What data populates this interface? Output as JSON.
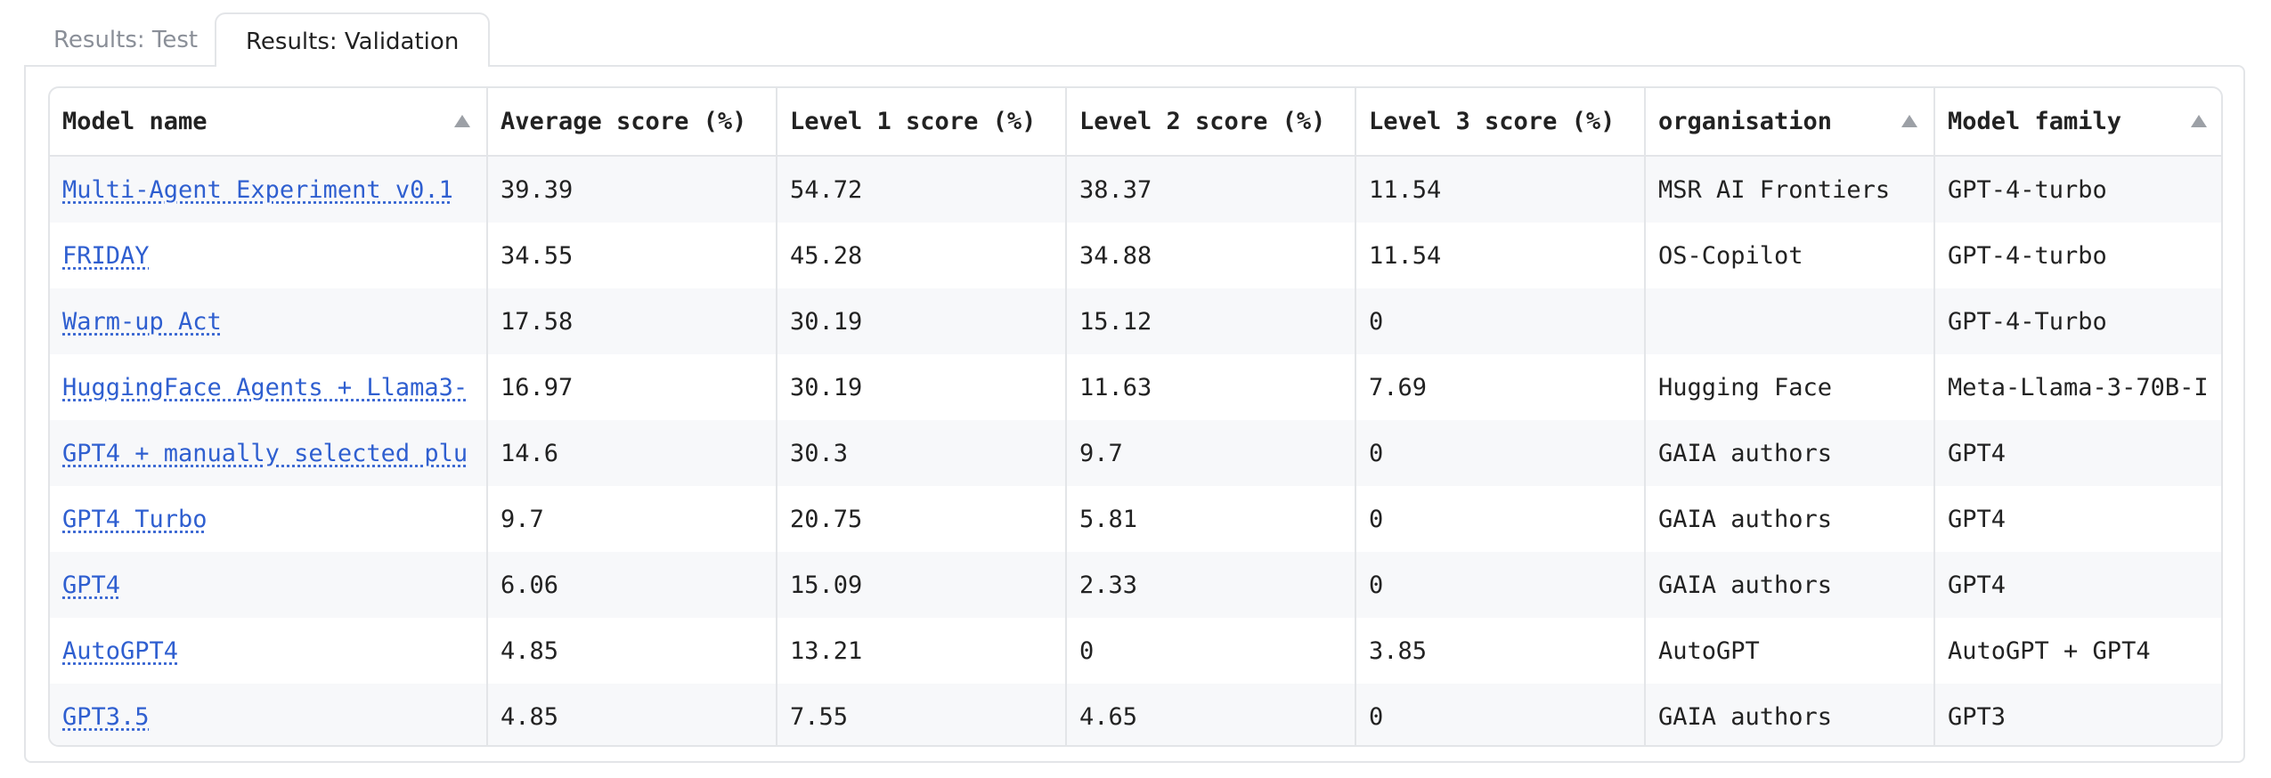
{
  "tabs": [
    "Results: Test",
    "Results: Validation"
  ],
  "table": {
    "headers": [
      "Model name",
      "Average score (%)",
      "Level 1 score (%)",
      "Level 2 score (%)",
      "Level 3 score (%)",
      "organisation",
      "Model family"
    ],
    "rows": [
      [
        "Multi-Agent Experiment v0.1",
        "39.39",
        "54.72",
        "38.37",
        "11.54",
        "MSR AI Frontiers",
        "GPT-4-turbo"
      ],
      [
        "FRIDAY",
        "34.55",
        "45.28",
        "34.88",
        "11.54",
        "OS-Copilot",
        "GPT-4-turbo"
      ],
      [
        "Warm-up Act",
        "17.58",
        "30.19",
        "15.12",
        "0",
        null,
        "GPT-4-Turbo"
      ],
      [
        "HuggingFace Agents + Llama3-",
        "16.97",
        "30.19",
        "11.63",
        "7.69",
        "Hugging Face",
        "Meta-Llama-3-70B-I"
      ],
      [
        "GPT4 + manually selected plu",
        "14.6",
        "30.3",
        "9.7",
        "0",
        "GAIA authors",
        "GPT4"
      ],
      [
        "GPT4 Turbo",
        "9.7",
        "20.75",
        "5.81",
        "0",
        "GAIA authors",
        "GPT4"
      ],
      [
        "GPT4",
        "6.06",
        "15.09",
        "2.33",
        "0",
        "GAIA authors",
        "GPT4"
      ],
      [
        "AutoGPT4",
        "4.85",
        "13.21",
        "0",
        "3.85",
        "AutoGPT",
        "AutoGPT + GPT4"
      ],
      [
        "GPT3.5",
        "4.85",
        "7.55",
        "4.65",
        "0",
        "GAIA authors",
        "GPT3"
      ]
    ]
  }
}
